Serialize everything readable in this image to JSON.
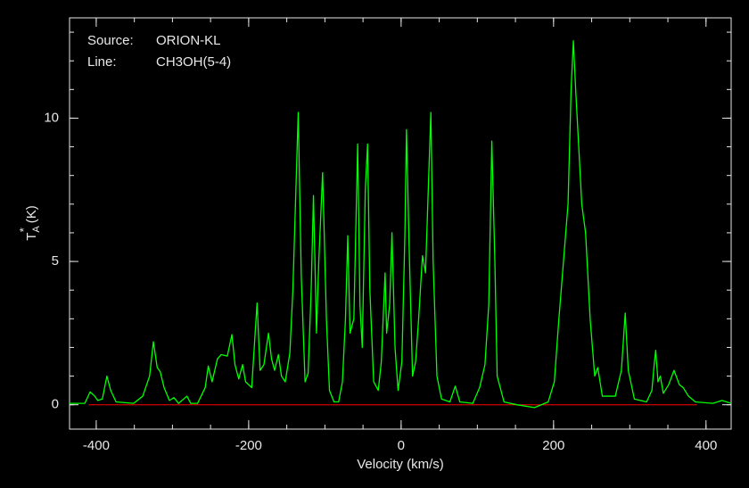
{
  "chart_data": {
    "type": "line",
    "annotations": [
      [
        "Source:",
        "ORION-KL"
      ],
      [
        "Line:",
        "CH3OH(5-4)"
      ]
    ],
    "xlabel": "Velocity (km/s)",
    "ylabel": {
      "base": "T",
      "sub": "A",
      "sup": "*",
      "unit": "(K)"
    },
    "xlim": [
      -435,
      433
    ],
    "ylim": [
      -0.85,
      13.5
    ],
    "xticks": [
      -400,
      -200,
      0,
      200,
      400
    ],
    "yticks": [
      0,
      5,
      10
    ],
    "xminorticks": [
      -400,
      -350,
      -300,
      -250,
      -200,
      -150,
      -100,
      -50,
      0,
      50,
      100,
      150,
      200,
      250,
      300,
      350,
      400
    ],
    "yminorticks": [
      0,
      1,
      2,
      3,
      4,
      5,
      6,
      7,
      8,
      9,
      10,
      11,
      12,
      13
    ],
    "baseline": {
      "value": 0,
      "color": "#ff0000",
      "x": [
        -410,
        388
      ]
    },
    "series": [
      {
        "color": "#00ff00",
        "x": [
          -435,
          -415,
          -408,
          -402,
          -398,
          -392,
          -386,
          -381,
          -374,
          -351,
          -339,
          -330,
          -325,
          -320,
          -316,
          -311,
          -304,
          -298,
          -292,
          -281,
          -276,
          -267,
          -257,
          -253,
          -248,
          -241,
          -236,
          -228,
          -222,
          -218,
          -213,
          -208,
          -204,
          -196,
          -189,
          -185,
          -180,
          -174,
          -170,
          -166,
          -161,
          -157,
          -152,
          -146,
          -142,
          -135,
          -131,
          -126,
          -122,
          -118,
          -115,
          -111,
          -108,
          -103,
          -98,
          -94,
          -88,
          -82,
          -77,
          -73,
          -70,
          -67,
          -62,
          -57,
          -54,
          -51,
          -47,
          -44,
          -41,
          -36,
          -30,
          -26,
          -21,
          -19,
          -15,
          -12,
          -8,
          -4,
          1,
          5,
          7,
          11,
          15,
          19,
          23,
          28,
          32,
          35,
          39,
          42,
          47,
          53,
          64,
          71,
          77,
          94,
          103,
          110,
          115,
          119,
          123,
          126,
          135,
          152,
          175,
          193,
          201,
          207,
          213,
          219,
          223,
          226,
          229,
          234,
          237,
          242,
          248,
          254,
          258,
          264,
          281,
          289,
          294,
          298,
          306,
          322,
          329,
          332,
          334,
          337,
          340,
          344,
          351,
          358,
          365,
          370,
          377,
          386,
          409,
          421,
          433
        ],
        "values": [
          0.05,
          0.05,
          0.45,
          0.3,
          0.15,
          0.2,
          1.0,
          0.5,
          0.1,
          0.05,
          0.3,
          1.0,
          2.2,
          1.3,
          1.15,
          0.6,
          0.15,
          0.25,
          0.05,
          0.3,
          0.05,
          0.05,
          0.6,
          1.35,
          0.8,
          1.6,
          1.75,
          1.7,
          2.45,
          1.4,
          0.9,
          1.4,
          0.8,
          0.6,
          3.55,
          1.2,
          1.4,
          2.5,
          1.6,
          1.2,
          1.75,
          1.0,
          0.8,
          1.8,
          4.0,
          10.2,
          4.5,
          0.8,
          1.1,
          4.0,
          7.3,
          2.5,
          5.0,
          8.1,
          3.0,
          0.5,
          0.1,
          0.1,
          0.8,
          3.0,
          5.9,
          2.5,
          3.0,
          9.1,
          3.5,
          2.0,
          7.5,
          9.1,
          4.0,
          0.8,
          0.5,
          1.5,
          4.6,
          2.5,
          3.5,
          6.0,
          2.0,
          0.5,
          1.5,
          6.0,
          9.6,
          5.0,
          1.0,
          1.5,
          3.0,
          5.2,
          4.6,
          7.0,
          10.2,
          5.0,
          1.0,
          0.2,
          0.1,
          0.65,
          0.1,
          0.05,
          0.6,
          1.4,
          3.5,
          9.2,
          5.0,
          1.0,
          0.1,
          0.0,
          -0.1,
          0.1,
          0.8,
          3.0,
          5.0,
          7.0,
          11.0,
          12.7,
          11.0,
          8.5,
          7.0,
          6.0,
          3.0,
          1.0,
          1.3,
          0.3,
          0.3,
          1.2,
          3.2,
          1.2,
          0.2,
          0.1,
          0.5,
          1.4,
          1.9,
          0.8,
          1.0,
          0.4,
          0.7,
          1.2,
          0.7,
          0.6,
          0.3,
          0.1,
          0.05,
          0.15,
          0.05
        ]
      }
    ]
  }
}
